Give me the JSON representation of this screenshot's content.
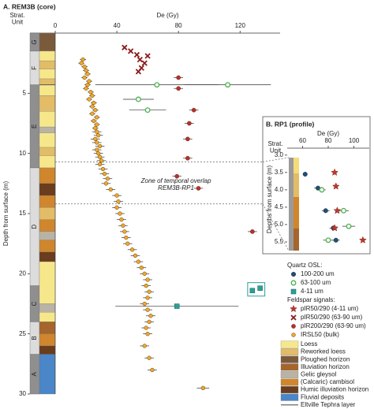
{
  "chart_data": [
    {
      "type": "scatter",
      "title": "A. REM3B (core)",
      "strat_label_lines": [
        "Strat.",
        "Unit"
      ],
      "xlabel": "De (Gy)",
      "ylabel": "Depth from surface (m)",
      "xlim": [
        0,
        146
      ],
      "xticks": [
        0,
        40,
        80,
        120
      ],
      "ylim": [
        0,
        30
      ],
      "yticks": [
        5,
        10,
        15,
        20,
        25,
        30
      ],
      "y_inverted": true,
      "annotation_lines": [
        "Zone of temporal overlap",
        "REM3B-RP1"
      ],
      "annotation_depth": 12.3,
      "annotation_de": 40,
      "overlap_depths": [
        10.7,
        14.2
      ],
      "tephra_depth": 4.3,
      "legend_titles": [
        "Quartz OSL:",
        "Feldspar signals:"
      ],
      "units": [
        {
          "label": "G",
          "top": 0,
          "bottom": 1.5,
          "color": "#8f8f8f"
        },
        {
          "label": "F",
          "top": 1.5,
          "bottom": 4.3,
          "color": "#dcdcdc"
        },
        {
          "label": "E",
          "top": 4.3,
          "bottom": 11.2,
          "color": "#8f8f8f"
        },
        {
          "label": "D",
          "top": 11.2,
          "bottom": 21,
          "color": "#dcdcdc"
        },
        {
          "label": "C",
          "top": 21,
          "bottom": 24,
          "color": "#8f8f8f"
        },
        {
          "label": "B",
          "top": 24,
          "bottom": 26.7,
          "color": "#dcdcdc"
        },
        {
          "label": "A",
          "top": 26.7,
          "bottom": 30,
          "color": "#8f8f8f"
        }
      ],
      "strat_layers": [
        {
          "top": 0,
          "bottom": 1.5,
          "type": 2
        },
        {
          "top": 1.5,
          "bottom": 2.3,
          "type": 0
        },
        {
          "top": 2.3,
          "bottom": 3.0,
          "type": 1
        },
        {
          "top": 3.0,
          "bottom": 3.8,
          "type": 0
        },
        {
          "top": 3.8,
          "bottom": 4.3,
          "type": 1
        },
        {
          "top": 4.3,
          "bottom": 5.2,
          "type": 0
        },
        {
          "top": 5.2,
          "bottom": 6.5,
          "type": 1
        },
        {
          "top": 6.5,
          "bottom": 7.8,
          "type": 0
        },
        {
          "top": 7.8,
          "bottom": 8.3,
          "type": 4
        },
        {
          "top": 8.3,
          "bottom": 9.5,
          "type": 0
        },
        {
          "top": 9.5,
          "bottom": 10.2,
          "type": 1
        },
        {
          "top": 10.2,
          "bottom": 11.2,
          "type": 0
        },
        {
          "top": 11.2,
          "bottom": 12.5,
          "type": 5
        },
        {
          "top": 12.5,
          "bottom": 13.5,
          "type": 6
        },
        {
          "top": 13.5,
          "bottom": 14.5,
          "type": 5
        },
        {
          "top": 14.5,
          "bottom": 15.5,
          "type": 1
        },
        {
          "top": 15.5,
          "bottom": 16.5,
          "type": 5
        },
        {
          "top": 16.5,
          "bottom": 17.2,
          "type": 4
        },
        {
          "top": 17.2,
          "bottom": 18.2,
          "type": 5
        },
        {
          "top": 18.2,
          "bottom": 19,
          "type": 6
        },
        {
          "top": 19,
          "bottom": 22.5,
          "type": 0
        },
        {
          "top": 22.5,
          "bottom": 23.2,
          "type": 4
        },
        {
          "top": 23.2,
          "bottom": 24,
          "type": 0
        },
        {
          "top": 24,
          "bottom": 25,
          "type": 3
        },
        {
          "top": 25,
          "bottom": 26,
          "type": 5
        },
        {
          "top": 26,
          "bottom": 26.7,
          "type": 6
        },
        {
          "top": 26.7,
          "bottom": 30,
          "type": 7
        }
      ],
      "strat_legend": [
        {
          "label": "Loess",
          "color": "#f6e88a"
        },
        {
          "label": "Reworked loess",
          "color": "#e3bc67"
        },
        {
          "label": "Ploughed horizon",
          "color": "#7b5a3c"
        },
        {
          "label": "Illuviation horizon",
          "color": "#a5652c"
        },
        {
          "label": "Gelic gleysol",
          "color": "#b9b3a6"
        },
        {
          "label": "(Calcaric) cambisol",
          "color": "#d0862c"
        },
        {
          "label": "Humic illuviation horizon",
          "color": "#6a3d1e"
        },
        {
          "label": "Fluvial deposits",
          "color": "#4a86c8"
        },
        {
          "label": "Eltville Tephra layer",
          "color": "#555555",
          "line": true
        }
      ],
      "series": [
        {
          "name": "100-200 um",
          "group": 0,
          "marker": "circle",
          "color": "#1f4e79",
          "x": [],
          "y": [],
          "xerr": []
        },
        {
          "name": "63-100 um",
          "group": 0,
          "marker": "open-circle",
          "color": "#4caf50",
          "x": [
            66,
            112,
            54,
            60
          ],
          "y": [
            4.3,
            4.3,
            5.5,
            6.4
          ],
          "xerr": [
            40,
            28,
            10,
            12
          ]
        },
        {
          "name": "4-11 um",
          "group": 0,
          "marker": "square",
          "color": "#2aa198",
          "x": [
            79,
            128,
            133
          ],
          "y": [
            22.7,
            21.4,
            21.2
          ],
          "xerr": [
            40,
            0,
            0
          ]
        },
        {
          "name": "pIR50/290 (4-11 um)",
          "group": 1,
          "marker": "star",
          "color": "#c0392b",
          "x": [],
          "y": [],
          "xerr": []
        },
        {
          "name": "pIR50/290 (63-90 um)",
          "group": 1,
          "marker": "cross",
          "color": "#8b1a1a",
          "x": [
            45,
            49,
            53,
            55,
            58,
            56,
            54,
            60
          ],
          "y": [
            1.2,
            1.5,
            1.8,
            2.2,
            2.5,
            2.9,
            3.2,
            1.9
          ],
          "xerr": [
            0,
            0,
            0,
            0,
            0,
            0,
            0,
            0
          ]
        },
        {
          "name": "pIR200/290 (63-90 um)",
          "group": 1,
          "marker": "dot",
          "color": "#b5322a",
          "x": [
            80,
            80,
            90,
            87,
            86,
            86,
            79,
            93,
            128
          ],
          "y": [
            3.7,
            4.6,
            6.4,
            7.5,
            8.8,
            10.4,
            11.9,
            12.9,
            16.5
          ],
          "xerr": [
            3,
            3,
            3,
            3,
            3,
            3,
            3,
            3,
            3
          ]
        },
        {
          "name": "IRSL50 (bulk)",
          "group": 1,
          "marker": "orange",
          "color": "#f0a830",
          "x": [
            18,
            17,
            19,
            20,
            21,
            19,
            22,
            21,
            20,
            23,
            24,
            22,
            25,
            24,
            26,
            24,
            27,
            25,
            27,
            26,
            27,
            28,
            26,
            27,
            29,
            27,
            28,
            29,
            30,
            29,
            31,
            32,
            34,
            33,
            36,
            40,
            41,
            40,
            42,
            43,
            44,
            45,
            46,
            47,
            50,
            52,
            54,
            56,
            58,
            60,
            59,
            61,
            60,
            58,
            60,
            62,
            61,
            59,
            60,
            58,
            61,
            63,
            96
          ],
          "y": [
            2.2,
            2.5,
            2.8,
            3.1,
            3.4,
            3.7,
            4.0,
            4.3,
            4.6,
            4.9,
            5.2,
            5.5,
            5.8,
            6.1,
            6.4,
            6.7,
            7.0,
            7.3,
            7.6,
            7.9,
            8.2,
            8.5,
            8.8,
            9.1,
            9.4,
            9.7,
            10.0,
            10.3,
            10.6,
            10.9,
            11.3,
            11.7,
            12.1,
            12.5,
            13.0,
            13.5,
            14.0,
            14.5,
            15.0,
            15.5,
            16.0,
            16.5,
            17.0,
            17.5,
            18.0,
            18.5,
            19.0,
            19.5,
            20.0,
            20.5,
            21.0,
            21.5,
            22.0,
            22.5,
            23.0,
            23.5,
            24.0,
            24.5,
            25.0,
            26.0,
            27.0,
            28.0,
            29.5
          ],
          "xerr": [
            2,
            2,
            2,
            2,
            2,
            2,
            2,
            2,
            2,
            2,
            2,
            2,
            2,
            2,
            2,
            2,
            2,
            2,
            2,
            2,
            3,
            3,
            3,
            3,
            3,
            3,
            3,
            3,
            3,
            3,
            3,
            3,
            3,
            3,
            3,
            3,
            3,
            3,
            3,
            3,
            3,
            3,
            3,
            3,
            3,
            3,
            3,
            3,
            3,
            3,
            3,
            3,
            3,
            3,
            3,
            3,
            3,
            3,
            3,
            3,
            3,
            3,
            4
          ]
        }
      ]
    },
    {
      "type": "scatter",
      "title": "B. RP1 (profile)",
      "strat_label_lines": [
        "Strat.",
        "Unit"
      ],
      "xlabel": "De (Gy)",
      "ylabel": "Depths from surface (m)",
      "xlim": [
        48,
        112
      ],
      "xticks": [
        60,
        80,
        100
      ],
      "ylim": [
        2.8,
        5.75
      ],
      "y_inverted": true,
      "yticks": [
        {
          "value": 3,
          "label": "3.0"
        },
        3.5,
        {
          "value": 4,
          "label": "4.0"
        },
        4.5,
        {
          "value": 5,
          "label": "5.0"
        },
        5.5
      ],
      "series": [
        {
          "name": "100-200 um",
          "marker": "circle",
          "color": "#1f4e79",
          "x": [
            62,
            72,
            78,
            84,
            86
          ],
          "y": [
            3.55,
            3.95,
            4.6,
            5.1,
            5.45
          ],
          "xerr": [
            0,
            3,
            3,
            3,
            3
          ]
        },
        {
          "name": "63-100 um",
          "marker": "open-circle",
          "color": "#4caf50",
          "x": [
            75,
            92,
            96,
            80
          ],
          "y": [
            4.0,
            4.6,
            5.05,
            5.45
          ],
          "xerr": [
            3,
            4,
            5,
            4
          ]
        },
        {
          "name": "pIR50/290 (4-11 um)",
          "marker": "star",
          "color": "#c0392b",
          "x": [
            85,
            86,
            87,
            85,
            107
          ],
          "y": [
            3.5,
            3.9,
            4.6,
            5.1,
            5.45
          ],
          "xerr": [
            0,
            0,
            0,
            0,
            0
          ]
        }
      ]
    }
  ]
}
